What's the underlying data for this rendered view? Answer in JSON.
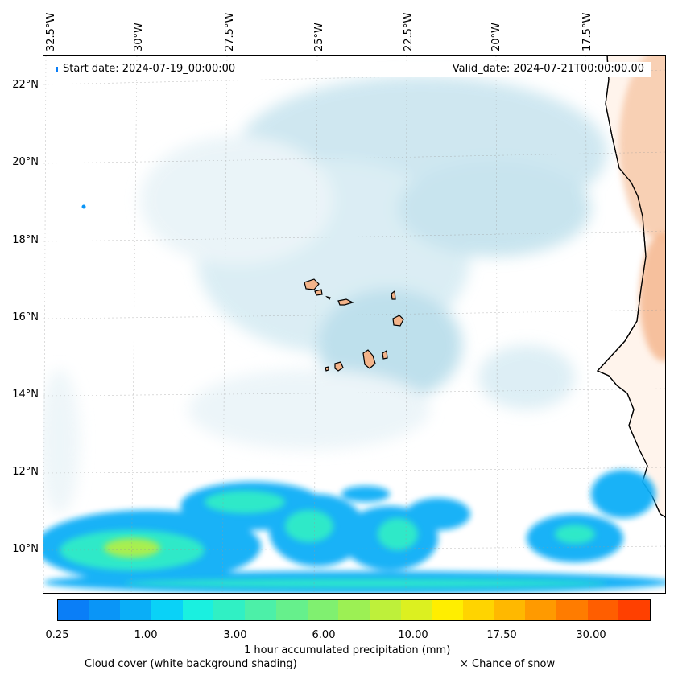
{
  "map": {
    "lon_labels": [
      "32.5°W",
      "30°W",
      "27.5°W",
      "25°W",
      "22.5°W",
      "20°W",
      "17.5°W"
    ],
    "lat_labels": [
      "22°N",
      "20°N",
      "18°N",
      "16°N",
      "14°N",
      "12°N",
      "10°N"
    ],
    "extent": {
      "lon_min": -32.6,
      "lon_max": -15.4,
      "lat_min": 8.8,
      "lat_max": 22.8
    }
  },
  "info": {
    "start_date": "Start date: 2024-07-19_00:00:00",
    "valid_date": "Valid_date: 2024-07-21T00:00:00.00"
  },
  "colorbar": {
    "colors": [
      "#0a7ef7",
      "#0a95f7",
      "#0aaef7",
      "#0ad2f7",
      "#1af0e0",
      "#30f0c4",
      "#4cf0a8",
      "#66f08c",
      "#80f070",
      "#9cf054",
      "#bef03a",
      "#dcf020",
      "#ffee00",
      "#ffd400",
      "#ffb800",
      "#ff9a00",
      "#ff7c00",
      "#ff5e00",
      "#ff4000"
    ],
    "tick_labels": [
      "0.25",
      "1.00",
      "3.00",
      "6.00",
      "10.00",
      "17.50",
      "30.00"
    ],
    "label": "1 hour accumulated precipitation (mm)"
  },
  "captions": {
    "cloud_cover": "Cloud cover (white background shading)",
    "snow": "× Chance of snow"
  },
  "colors": {
    "land": "#f4b48a",
    "cloud": "#a9d6e6",
    "coast": "#000000"
  }
}
